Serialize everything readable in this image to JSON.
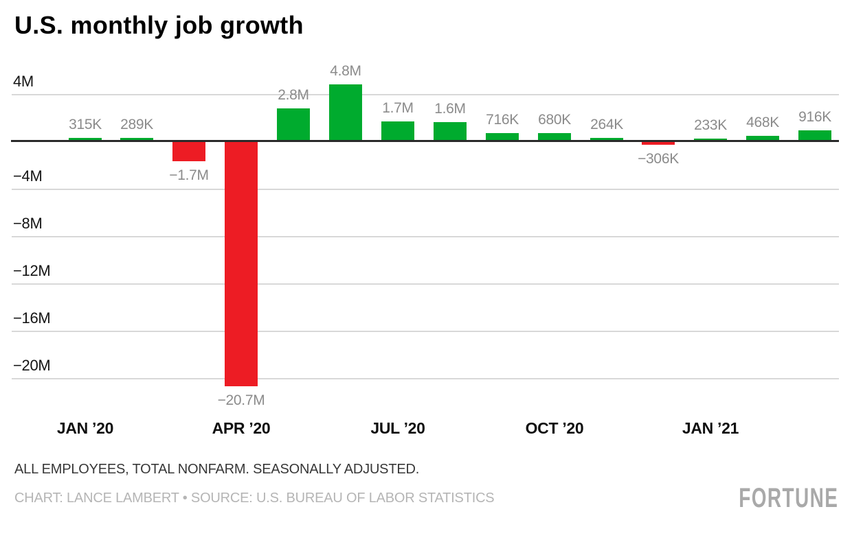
{
  "chart_data": {
    "type": "bar",
    "title": "U.S. monthly job growth",
    "grid": true,
    "bars": [
      {
        "label": "315K",
        "value_millions": 0.315
      },
      {
        "label": "289K",
        "value_millions": 0.289
      },
      {
        "label": "−1.7M",
        "value_millions": -1.7
      },
      {
        "label": "−20.7M",
        "value_millions": -20.7
      },
      {
        "label": "2.8M",
        "value_millions": 2.8
      },
      {
        "label": "4.8M",
        "value_millions": 4.8
      },
      {
        "label": "1.7M",
        "value_millions": 1.7
      },
      {
        "label": "1.6M",
        "value_millions": 1.6
      },
      {
        "label": "716K",
        "value_millions": 0.716
      },
      {
        "label": "680K",
        "value_millions": 0.68
      },
      {
        "label": "264K",
        "value_millions": 0.264
      },
      {
        "label": "−306K",
        "value_millions": -0.306
      },
      {
        "label": "233K",
        "value_millions": 0.233
      },
      {
        "label": "468K",
        "value_millions": 0.468
      },
      {
        "label": "916K",
        "value_millions": 0.916
      }
    ],
    "x_ticks": [
      {
        "label": "JAN ’20",
        "bar_index": 0
      },
      {
        "label": "APR ’20",
        "bar_index": 3
      },
      {
        "label": "JUL ’20",
        "bar_index": 6
      },
      {
        "label": "OCT ’20",
        "bar_index": 9
      },
      {
        "label": "JAN ’21",
        "bar_index": 12
      }
    ],
    "y_ticks": [
      {
        "label": "4M",
        "value": 4
      },
      {
        "label": "−4M",
        "value": -4
      },
      {
        "label": "−8M",
        "value": -8
      },
      {
        "label": "−12M",
        "value": -12
      },
      {
        "label": "−16M",
        "value": -16
      },
      {
        "label": "−20M",
        "value": -20
      }
    ],
    "ylim": [
      -22.5,
      5.5
    ],
    "colors": {
      "positive": "#00ab2e",
      "negative": "#ed1c24",
      "gridline": "#d8d8d8",
      "zero_axis": "#2a2a2a",
      "value_label": "#8b8b8b"
    }
  },
  "footer": {
    "note": "ALL EMPLOYEES, TOTAL NONFARM. SEASONALLY ADJUSTED.",
    "credit": "CHART: LANCE LAMBERT • SOURCE: U.S. BUREAU OF LABOR STATISTICS"
  },
  "branding": {
    "logo_text": "FORTUNE"
  }
}
